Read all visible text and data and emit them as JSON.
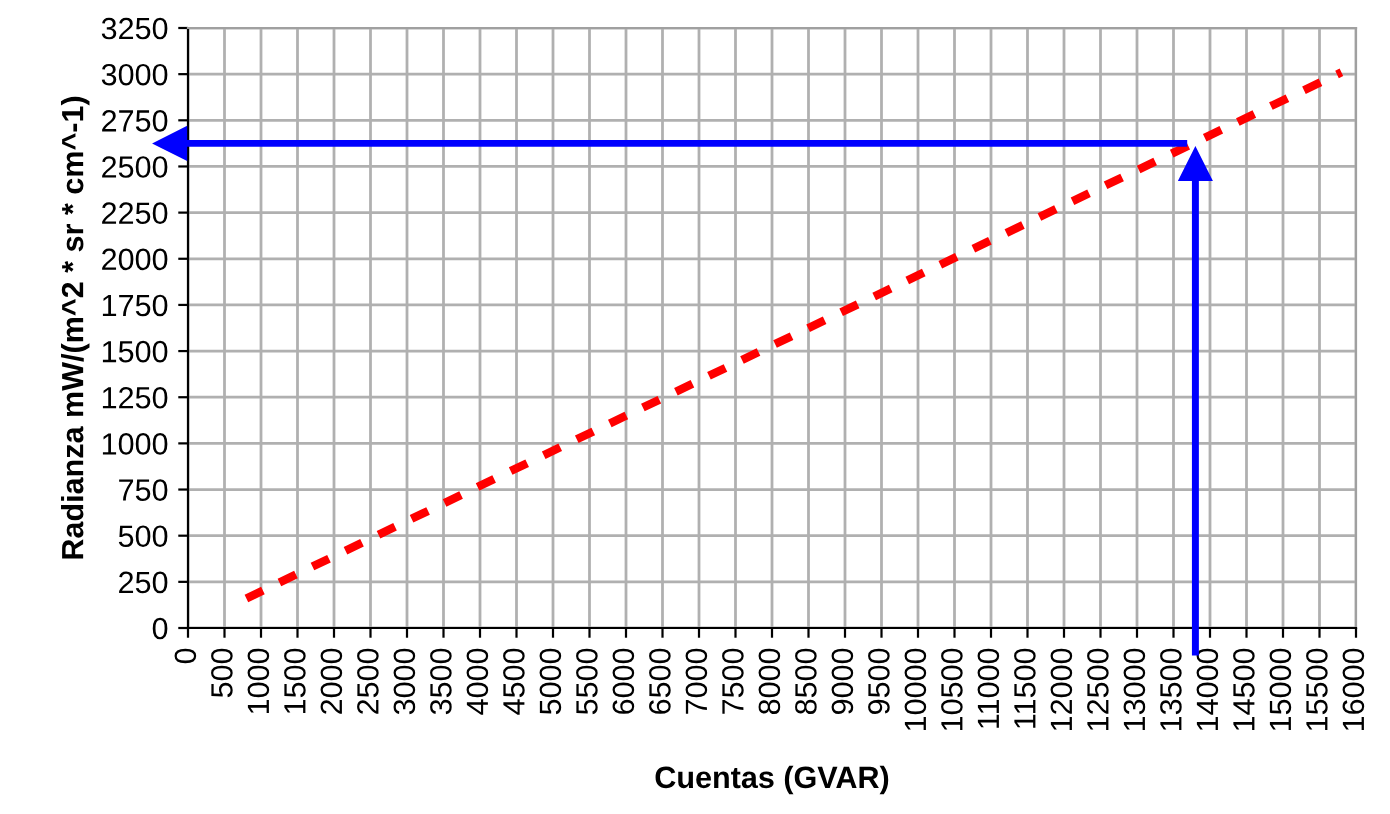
{
  "chart_data": {
    "type": "line",
    "xlabel": "Cuentas (GVAR)",
    "ylabel": "Radianza mW/(m^2 * sr * cm^-1)",
    "series": [
      {
        "color": "#ff0000",
        "x": [
          800,
          4000,
          8000,
          12000,
          15800
        ],
        "values": [
          160,
          770,
          1530,
          2290,
          3010
        ],
        "line_style": "dashed"
      }
    ],
    "xlim": [
      0,
      16000
    ],
    "xticks": [
      0,
      500,
      1000,
      1500,
      2000,
      2500,
      3000,
      3500,
      4000,
      4500,
      5000,
      5500,
      6000,
      6500,
      7000,
      7500,
      8000,
      8500,
      9000,
      9500,
      10000,
      10500,
      11000,
      11500,
      12000,
      12500,
      13000,
      13500,
      14000,
      14500,
      15000,
      15500,
      16000
    ],
    "ylim": [
      0,
      3250
    ],
    "yticks": [
      0,
      250,
      500,
      750,
      1000,
      1250,
      1500,
      1750,
      2000,
      2250,
      2500,
      2750,
      3000,
      3250
    ],
    "ref_lines": [
      {
        "axis": "x",
        "value": 13800,
        "color": "#0000ff"
      },
      {
        "axis": "y",
        "value": 2625,
        "color": "#0000ff"
      }
    ],
    "grid": true,
    "legend": false,
    "marker": "none"
  }
}
